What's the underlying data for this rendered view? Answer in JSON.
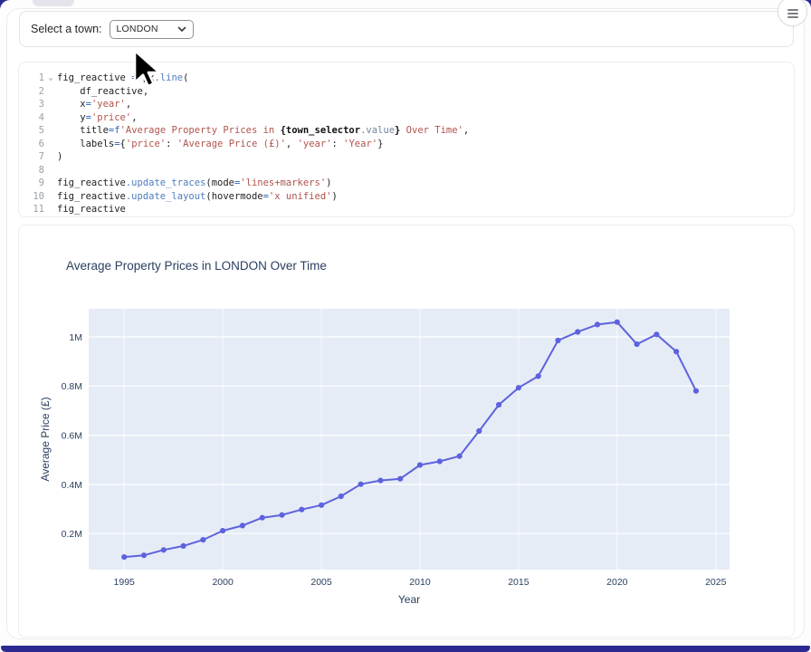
{
  "window": {
    "frame_color": "#2c2a91",
    "menu_button": "hamburger"
  },
  "town_selector": {
    "label": "Select a town:",
    "value": "LONDON",
    "fold_icon": "⌄"
  },
  "code_cell": {
    "lines": [
      {
        "num": "1",
        "fold": true,
        "segments": [
          {
            "c": "t",
            "t": "fig_reactive "
          },
          {
            "c": "o",
            "t": "= "
          },
          {
            "c": "t",
            "t": "px"
          },
          {
            "c": "f",
            "t": ".line"
          },
          {
            "c": "t",
            "t": "("
          }
        ]
      },
      {
        "num": "2",
        "fold": false,
        "segments": [
          {
            "c": "t",
            "t": "    df_reactive,"
          }
        ]
      },
      {
        "num": "3",
        "fold": false,
        "segments": [
          {
            "c": "t",
            "t": "    x"
          },
          {
            "c": "o",
            "t": "="
          },
          {
            "c": "s",
            "t": "'year'"
          },
          {
            "c": "t",
            "t": ","
          }
        ]
      },
      {
        "num": "4",
        "fold": false,
        "segments": [
          {
            "c": "t",
            "t": "    y"
          },
          {
            "c": "o",
            "t": "="
          },
          {
            "c": "s",
            "t": "'price'"
          },
          {
            "c": "t",
            "t": ","
          }
        ]
      },
      {
        "num": "5",
        "fold": false,
        "segments": [
          {
            "c": "t",
            "t": "    title"
          },
          {
            "c": "o",
            "t": "="
          },
          {
            "c": "o",
            "t": "f"
          },
          {
            "c": "s",
            "t": "'Average Property Prices in "
          },
          {
            "c": "bt",
            "t": "{town_selector"
          },
          {
            "c": "v",
            "t": ".value"
          },
          {
            "c": "bt",
            "t": "}"
          },
          {
            "c": "s",
            "t": " Over Time'"
          },
          {
            "c": "t",
            "t": ","
          }
        ]
      },
      {
        "num": "6",
        "fold": false,
        "segments": [
          {
            "c": "t",
            "t": "    labels"
          },
          {
            "c": "o",
            "t": "="
          },
          {
            "c": "t",
            "t": "{"
          },
          {
            "c": "s",
            "t": "'price'"
          },
          {
            "c": "t",
            "t": ": "
          },
          {
            "c": "s",
            "t": "'Average Price (£)'"
          },
          {
            "c": "t",
            "t": ", "
          },
          {
            "c": "s",
            "t": "'year'"
          },
          {
            "c": "t",
            "t": ": "
          },
          {
            "c": "s",
            "t": "'Year'"
          },
          {
            "c": "t",
            "t": "}"
          }
        ]
      },
      {
        "num": "7",
        "fold": false,
        "segments": [
          {
            "c": "t",
            "t": ")"
          }
        ]
      },
      {
        "num": "8",
        "fold": false,
        "segments": []
      },
      {
        "num": "9",
        "fold": false,
        "segments": [
          {
            "c": "t",
            "t": "fig_reactive"
          },
          {
            "c": "f",
            "t": ".update_traces"
          },
          {
            "c": "t",
            "t": "(mode"
          },
          {
            "c": "o",
            "t": "="
          },
          {
            "c": "s",
            "t": "'lines+markers'"
          },
          {
            "c": "t",
            "t": ")"
          }
        ]
      },
      {
        "num": "10",
        "fold": false,
        "segments": [
          {
            "c": "t",
            "t": "fig_reactive"
          },
          {
            "c": "f",
            "t": ".update_layout"
          },
          {
            "c": "t",
            "t": "(hovermode"
          },
          {
            "c": "o",
            "t": "="
          },
          {
            "c": "s",
            "t": "'x unified'"
          },
          {
            "c": "t",
            "t": ")"
          }
        ]
      },
      {
        "num": "11",
        "fold": false,
        "segments": [
          {
            "c": "t",
            "t": "fig_reactive"
          }
        ]
      }
    ]
  },
  "chart_data": {
    "type": "line",
    "title": "Average Property Prices in LONDON Over Time",
    "xlabel": "Year",
    "ylabel": "Average Price (£)",
    "x": [
      1995,
      1996,
      1997,
      1998,
      1999,
      2000,
      2001,
      2002,
      2003,
      2004,
      2005,
      2006,
      2007,
      2008,
      2009,
      2010,
      2011,
      2012,
      2013,
      2014,
      2015,
      2016,
      2017,
      2018,
      2019,
      2020,
      2021,
      2022,
      2023,
      2024
    ],
    "series": [
      {
        "name": "price",
        "values": [
          105000,
          112000,
          134000,
          150000,
          175000,
          212000,
          233000,
          265000,
          276000,
          298000,
          316000,
          352000,
          401000,
          416000,
          423000,
          479000,
          494000,
          515000,
          617000,
          724000,
          793000,
          840000,
          985000,
          1020000,
          1050000,
          1060000,
          970000,
          1010000,
          940000,
          780000
        ]
      }
    ],
    "mode": "lines+markers",
    "xticks": [
      1995,
      2000,
      2005,
      2010,
      2015,
      2020,
      2025
    ],
    "yticks": [
      {
        "v": 200000,
        "label": "0.2M"
      },
      {
        "v": 400000,
        "label": "0.4M"
      },
      {
        "v": 600000,
        "label": "0.6M"
      },
      {
        "v": 800000,
        "label": "0.8M"
      },
      {
        "v": 1000000,
        "label": "1M"
      }
    ],
    "xlim": [
      1993.2,
      2025.7
    ],
    "ylim": [
      54000,
      1114000
    ],
    "grid": true,
    "legend": false,
    "line_color": "#5e62dd",
    "plot_bg": "#e5ecf6",
    "text_color": "#2a3f5f"
  }
}
